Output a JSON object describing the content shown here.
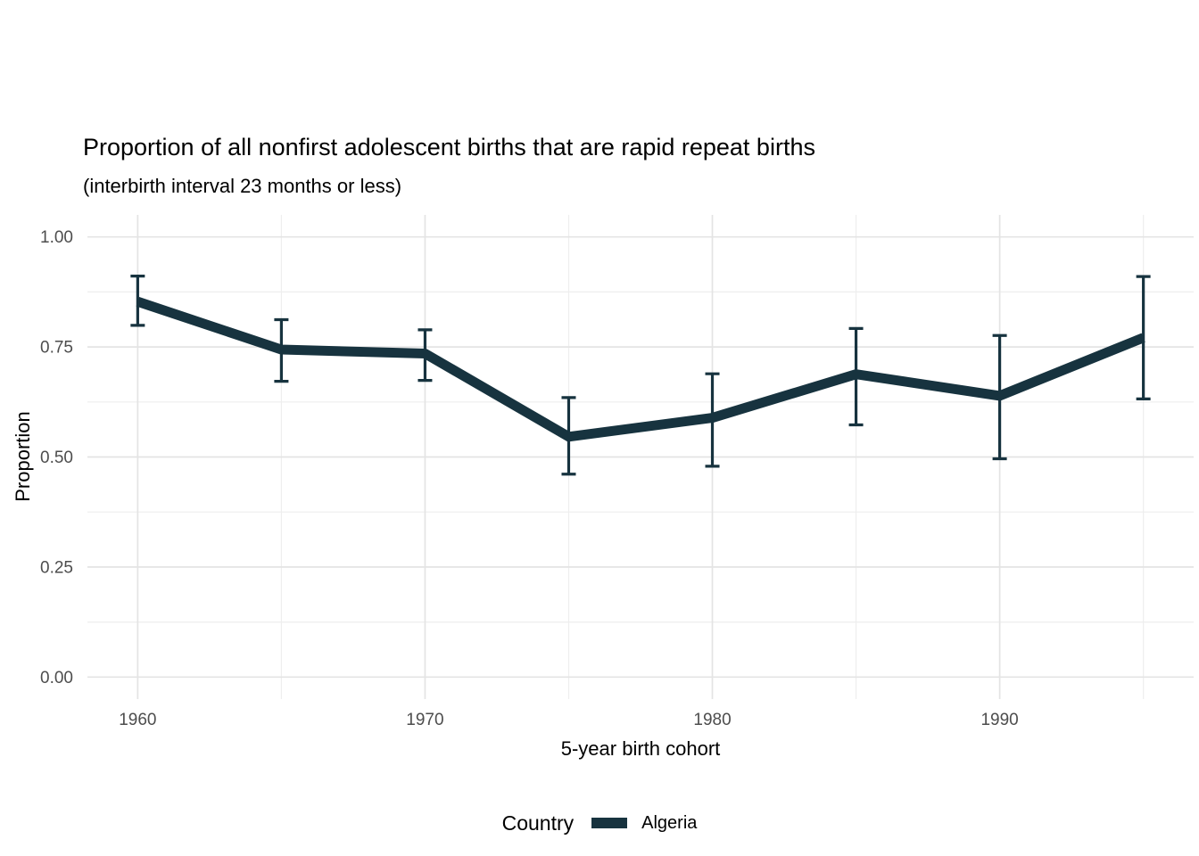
{
  "title": "Proportion of all nonfirst adolescent births that are rapid repeat births",
  "subtitle": "(interbirth interval 23 months or less)",
  "legend": {
    "title": "Country",
    "entries": [
      {
        "label": "Algeria",
        "color": "#17333f"
      }
    ]
  },
  "colors": {
    "series": "#17333f",
    "grid_major": "#e4e4e4",
    "grid_minor": "#eeeeee",
    "tick_label": "#4d4d4d",
    "background": "#ffffff"
  },
  "chart_data": {
    "type": "line",
    "title": "Proportion of all nonfirst adolescent births that are rapid repeat births",
    "subtitle": "(interbirth interval 23 months or less)",
    "xlabel": "5-year birth cohort",
    "ylabel": "Proportion",
    "x": [
      1960,
      1965,
      1970,
      1975,
      1980,
      1985,
      1990,
      1995
    ],
    "series": [
      {
        "name": "Algeria",
        "color": "#17333f",
        "values": [
          0.853,
          0.744,
          0.735,
          0.546,
          0.589,
          0.688,
          0.639,
          0.771
        ],
        "lower": [
          0.799,
          0.672,
          0.674,
          0.461,
          0.479,
          0.573,
          0.496,
          0.632
        ],
        "upper": [
          0.911,
          0.812,
          0.789,
          0.635,
          0.689,
          0.792,
          0.776,
          0.91
        ]
      }
    ],
    "error_bars": true,
    "xlim": [
      1960,
      1995
    ],
    "ylim": [
      0,
      1
    ],
    "x_ticks": [
      {
        "value": 1960,
        "label": "1960"
      },
      {
        "value": 1970,
        "label": "1970"
      },
      {
        "value": 1980,
        "label": "1980"
      },
      {
        "value": 1990,
        "label": "1990"
      }
    ],
    "y_ticks": [
      {
        "value": 0.0,
        "label": "0.00"
      },
      {
        "value": 0.25,
        "label": "0.25"
      },
      {
        "value": 0.5,
        "label": "0.50"
      },
      {
        "value": 0.75,
        "label": "0.75"
      },
      {
        "value": 1.0,
        "label": "1.00"
      }
    ],
    "x_grid_minor": [
      1965,
      1975,
      1985,
      1995
    ],
    "y_grid_minor": [
      0.125,
      0.375,
      0.625,
      0.875
    ],
    "grid": true,
    "legend_title": "Country",
    "legend_position": "bottom"
  }
}
